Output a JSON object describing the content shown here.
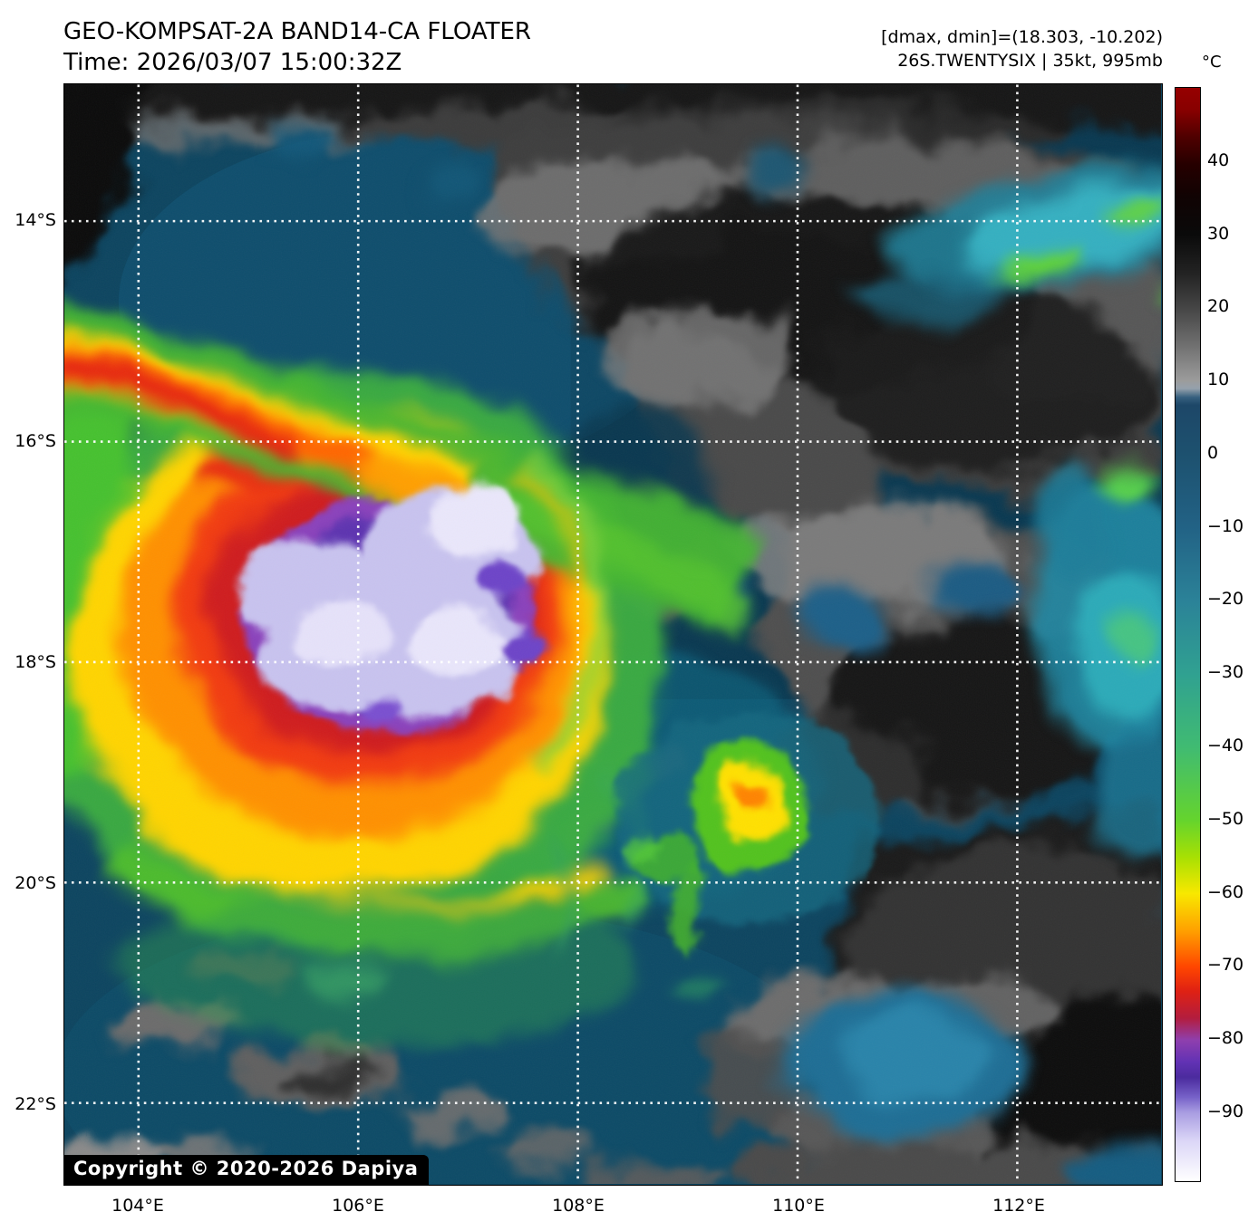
{
  "header": {
    "title": "GEO-KOMPSAT-2A BAND14-CA FLOATER",
    "time": "Time: 2026/03/07 15:00:32Z",
    "range_note": "[dmax, dmin]=(18.303, -10.202)",
    "storm_info": "26S.TWENTYSIX | 35kt, 995mb"
  },
  "colorbar": {
    "unit_label": "°C",
    "tick_labels": [
      "40",
      "30",
      "20",
      "10",
      "0",
      "−10",
      "−20",
      "−30",
      "−40",
      "−50",
      "−60",
      "−70",
      "−80",
      "−90"
    ]
  },
  "axes": {
    "latitude_labels": [
      "14°S",
      "16°S",
      "18°S",
      "20°S",
      "22°S"
    ],
    "longitude_labels": [
      "104°E",
      "106°E",
      "108°E",
      "110°E",
      "112°E"
    ]
  },
  "map": {
    "copyright": "Copyright © 2020-2026 Dapiya",
    "palette": {
      "coldest_cloud_top": "#e9e6fb",
      "very_cold_purple": "#5d33b0",
      "cold_red": "#e52310",
      "cold_yellow": "#ffd400",
      "cold_green": "#44b531",
      "ocean_teal": "#0d4560",
      "warm_cloud_gray": "#6e6e6e",
      "grid_line": "#ffffff"
    }
  }
}
